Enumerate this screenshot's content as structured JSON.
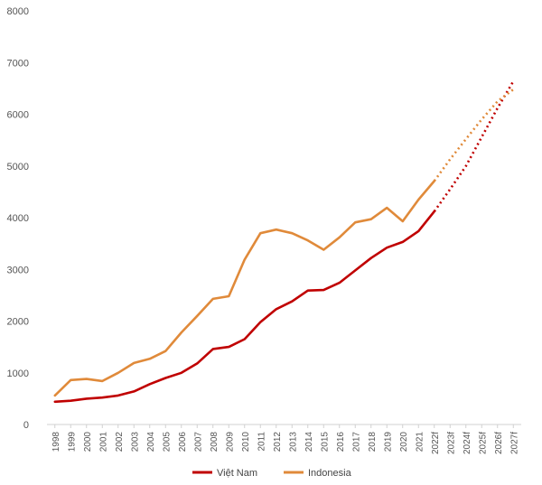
{
  "chart_data": {
    "type": "line",
    "title": "",
    "xlabel": "",
    "ylabel": "",
    "ylim": [
      0,
      8000
    ],
    "yticks": [
      0,
      1000,
      2000,
      3000,
      4000,
      5000,
      6000,
      7000,
      8000
    ],
    "ytick_labels": [
      "0",
      "1000",
      "2000",
      "3000",
      "4000",
      "5000",
      "6000",
      "7000",
      "8000"
    ],
    "categories": [
      "1998",
      "1999",
      "2000",
      "2001",
      "2002",
      "2003",
      "2004",
      "2005",
      "2006",
      "2007",
      "2008",
      "2009",
      "2010",
      "2011",
      "2012",
      "2013",
      "2014",
      "2015",
      "2016",
      "2017",
      "2018",
      "2019",
      "2020",
      "2021",
      "2022f",
      "2023f",
      "2024f",
      "2025f",
      "2026f",
      "2027f"
    ],
    "grid": false,
    "legend_position": "bottom",
    "series": [
      {
        "name": "Việt Nam",
        "color": "#c00000",
        "values": [
          440,
          460,
          500,
          520,
          560,
          640,
          780,
          900,
          1000,
          1180,
          1460,
          1500,
          1650,
          1980,
          2230,
          2380,
          2590,
          2600,
          2740,
          2980,
          3220,
          3420,
          3530,
          3740,
          4120,
          4550,
          5000,
          5560,
          6120,
          6640
        ],
        "forecast_from": "2022f"
      },
      {
        "name": "Indonesia",
        "color": "#e08a3a",
        "values": [
          560,
          860,
          880,
          840,
          1000,
          1190,
          1270,
          1420,
          1780,
          2100,
          2430,
          2480,
          3190,
          3700,
          3770,
          3700,
          3560,
          3380,
          3620,
          3910,
          3970,
          4190,
          3930,
          4350,
          4710,
          5130,
          5520,
          5900,
          6250,
          6480
        ],
        "forecast_from": "2022f"
      }
    ]
  }
}
